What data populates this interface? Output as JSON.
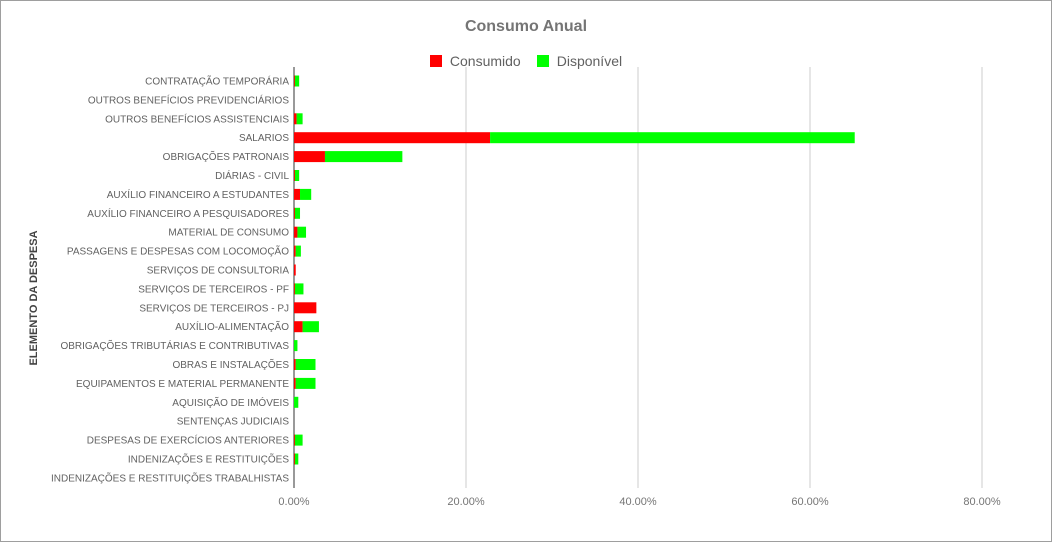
{
  "chart_data": {
    "type": "bar",
    "orientation": "horizontal",
    "stacked": true,
    "title": "Consumo Anual",
    "ylabel": "ELEMENTO DA DESPESA",
    "xlabel": "",
    "xlim": [
      0,
      80
    ],
    "xticks": [
      "0.00%",
      "20.00%",
      "40.00%",
      "60.00%",
      "80.00%"
    ],
    "grid": true,
    "legend_position": "top",
    "categories": [
      "CONTRATAÇÃO TEMPORÁRIA",
      "OUTROS BENEFÍCIOS PREVIDENCIÁRIOS",
      "OUTROS BENEFÍCIOS ASSISTENCIAIS",
      "SALARIOS",
      "OBRIGAÇÕES PATRONAIS",
      "DIÁRIAS - CIVIL",
      "AUXÍLIO FINANCEIRO A ESTUDANTES",
      "AUXÍLIO FINANCEIRO A PESQUISADORES",
      "MATERIAL DE CONSUMO",
      "PASSAGENS E DESPESAS COM LOCOMOÇÃO",
      "SERVIÇOS DE CONSULTORIA",
      "SERVIÇOS DE TERCEIROS - PF",
      "SERVIÇOS DE TERCEIROS - PJ",
      "AUXÍLIO-ALIMENTAÇÃO",
      "OBRIGAÇÕES TRIBUTÁRIAS E CONTRIBUTIVAS",
      "OBRAS E INSTALAÇÕES",
      "EQUIPAMENTOS E MATERIAL PERMANENTE",
      "AQUISIÇÃO DE IMÓVEIS",
      "SENTENÇAS JUDICIAIS",
      "DESPESAS DE EXERCÍCIOS ANTERIORES",
      "INDENIZAÇÕES E RESTITUIÇÕES",
      "INDENIZAÇÕES E RESTITUIÇÕES TRABALHISTAS"
    ],
    "series": [
      {
        "name": "Consumido",
        "color": "#ff0000",
        "values": [
          0.1,
          0,
          0.3,
          22.8,
          3.6,
          0.1,
          0.7,
          0.1,
          0.4,
          0.2,
          0.2,
          0.1,
          2.6,
          1.0,
          0,
          0.2,
          0.2,
          0,
          0,
          0.1,
          0.1,
          0
        ]
      },
      {
        "name": "Disponível",
        "color": "#00ff00",
        "values": [
          0.5,
          0,
          0.7,
          42.4,
          9.0,
          0.5,
          1.3,
          0.6,
          1.0,
          0.6,
          0,
          1.0,
          0,
          1.9,
          0.4,
          2.3,
          2.3,
          0.5,
          0,
          0.9,
          0.4,
          0
        ]
      }
    ]
  }
}
